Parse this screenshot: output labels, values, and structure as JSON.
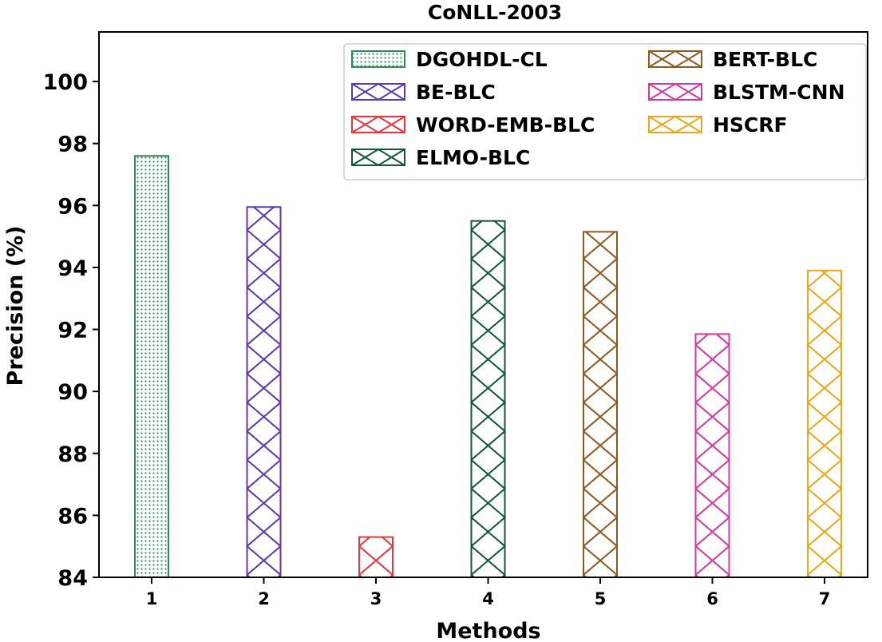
{
  "chart_data": {
    "type": "bar",
    "title": "CoNLL-2003",
    "xlabel": "Methods",
    "ylabel": "Precision (%)",
    "categories": [
      "1",
      "2",
      "3",
      "4",
      "5",
      "6",
      "7"
    ],
    "ylim": [
      84,
      101.6
    ],
    "yticks": [
      84,
      86,
      88,
      90,
      92,
      94,
      96,
      98,
      100
    ],
    "series": [
      {
        "name": "DGOHDL-CL",
        "category": "1",
        "value": 97.6,
        "color": "#2e8b57",
        "hatch": "dots"
      },
      {
        "name": "BE-BLC",
        "category": "2",
        "value": 95.95,
        "color": "#5b3ab0",
        "hatch": "cross"
      },
      {
        "name": "WORD-EMB-BLC",
        "category": "3",
        "value": 85.3,
        "color": "#e8353e",
        "hatch": "cross"
      },
      {
        "name": "ELMO-BLC",
        "category": "4",
        "value": 95.5,
        "color": "#14553c",
        "hatch": "cross"
      },
      {
        "name": "BERT-BLC",
        "category": "5",
        "value": 95.15,
        "color": "#8a5a1e",
        "hatch": "cross"
      },
      {
        "name": "BLSTM-CNN",
        "category": "6",
        "value": 91.85,
        "color": "#d1399f",
        "hatch": "cross"
      },
      {
        "name": "HSCRF",
        "category": "7",
        "value": 93.9,
        "color": "#e8a81a",
        "hatch": "cross"
      }
    ],
    "legend": {
      "position": "top-right",
      "columns": 2
    },
    "grid": false
  }
}
